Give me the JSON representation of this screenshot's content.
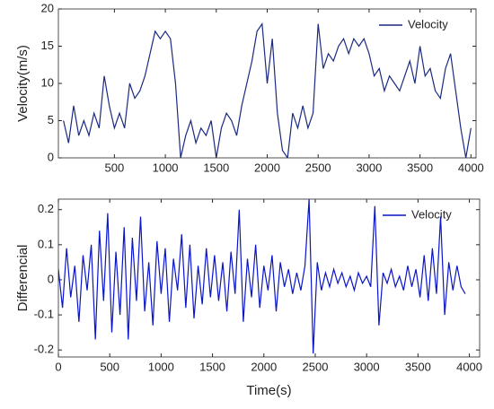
{
  "chart_data": [
    {
      "type": "line",
      "ylabel": "Velocity(m/s)",
      "xlim": [
        -50,
        4050
      ],
      "ylim": [
        0,
        20
      ],
      "xticks": [
        500,
        1000,
        1500,
        2000,
        2500,
        3000,
        3500,
        4000
      ],
      "yticks": [
        0,
        5,
        10,
        15,
        20
      ],
      "legend": "upper right",
      "x": [
        0,
        50,
        100,
        150,
        200,
        250,
        300,
        350,
        400,
        450,
        500,
        550,
        600,
        650,
        700,
        750,
        800,
        850,
        900,
        950,
        1000,
        1050,
        1100,
        1150,
        1200,
        1250,
        1300,
        1350,
        1400,
        1450,
        1500,
        1550,
        1600,
        1650,
        1700,
        1750,
        1800,
        1850,
        1900,
        1950,
        2000,
        2050,
        2100,
        2150,
        2200,
        2250,
        2300,
        2350,
        2400,
        2450,
        2500,
        2550,
        2600,
        2650,
        2700,
        2750,
        2800,
        2850,
        2900,
        2950,
        3000,
        3050,
        3100,
        3150,
        3200,
        3250,
        3300,
        3350,
        3400,
        3450,
        3500,
        3550,
        3600,
        3650,
        3700,
        3750,
        3800,
        3850,
        3900,
        3950,
        4000
      ],
      "series": [
        {
          "name": "Velocity",
          "color": "#1b2a80",
          "values": [
            5,
            2,
            7,
            3,
            5,
            3,
            6,
            4,
            11,
            7,
            4,
            6,
            4,
            10,
            8,
            9,
            11,
            14,
            17,
            16,
            17,
            16,
            10,
            0,
            3,
            5,
            2,
            4,
            3,
            5,
            0,
            4,
            6,
            5,
            3,
            7,
            10,
            13,
            17,
            18,
            10,
            16,
            6,
            1,
            0,
            6,
            4,
            7,
            4,
            6,
            18,
            12,
            14,
            13,
            15,
            16,
            14,
            16,
            15,
            16,
            14,
            11,
            12,
            9,
            11,
            10,
            9,
            11,
            13,
            10,
            15,
            11,
            12,
            9,
            8,
            12,
            14,
            9,
            4,
            0,
            4
          ]
        }
      ]
    },
    {
      "type": "line",
      "xlabel": "Time(s)",
      "ylabel": "Differencial",
      "xlim": [
        0,
        4100
      ],
      "ylim": [
        -0.22,
        0.23
      ],
      "xticks": [
        0,
        500,
        1000,
        1500,
        2000,
        2500,
        3000,
        3500,
        4000
      ],
      "yticks": [
        -0.2,
        -0.1,
        0,
        0.1,
        0.2
      ],
      "legend": "upper right",
      "x": [
        0,
        40,
        80,
        120,
        160,
        200,
        240,
        280,
        320,
        360,
        400,
        440,
        480,
        520,
        560,
        600,
        640,
        680,
        720,
        760,
        800,
        840,
        880,
        920,
        960,
        1000,
        1040,
        1080,
        1120,
        1160,
        1200,
        1240,
        1280,
        1320,
        1360,
        1400,
        1440,
        1480,
        1520,
        1560,
        1600,
        1640,
        1680,
        1720,
        1760,
        1800,
        1840,
        1880,
        1920,
        1960,
        2000,
        2040,
        2080,
        2120,
        2160,
        2200,
        2240,
        2280,
        2320,
        2360,
        2400,
        2440,
        2480,
        2520,
        2560,
        2600,
        2640,
        2680,
        2720,
        2760,
        2800,
        2840,
        2880,
        2920,
        2960,
        3000,
        3040,
        3080,
        3120,
        3160,
        3200,
        3240,
        3280,
        3320,
        3360,
        3400,
        3440,
        3480,
        3520,
        3560,
        3600,
        3640,
        3680,
        3720,
        3760,
        3800,
        3840,
        3880,
        3920,
        3960
      ],
      "series": [
        {
          "name": "Velocity",
          "color": "#0a14c8",
          "values": [
            0.03,
            -0.08,
            0.09,
            -0.05,
            0.04,
            -0.12,
            0.07,
            -0.03,
            0.1,
            -0.17,
            0.14,
            -0.06,
            0.19,
            -0.15,
            0.08,
            -0.1,
            0.15,
            -0.17,
            0.12,
            -0.06,
            0.18,
            -0.09,
            0.05,
            -0.13,
            0.11,
            -0.04,
            0.09,
            -0.12,
            0.06,
            -0.03,
            0.13,
            -0.08,
            0.1,
            -0.11,
            0.04,
            -0.07,
            0.09,
            -0.05,
            0.07,
            -0.06,
            0.05,
            -0.09,
            0.08,
            -0.04,
            0.2,
            -0.12,
            0.06,
            -0.05,
            0.1,
            -0.08,
            0.04,
            -0.03,
            0.07,
            -0.09,
            0.05,
            -0.02,
            0.03,
            -0.04,
            0.02,
            -0.03,
            0.04,
            0.23,
            -0.21,
            0.05,
            -0.03,
            0.02,
            -0.02,
            0.03,
            -0.01,
            0.02,
            -0.02,
            0.01,
            -0.03,
            0.02,
            -0.01,
            0.01,
            -0.02,
            0.21,
            -0.13,
            0.02,
            -0.01,
            0.03,
            -0.02,
            0.01,
            -0.03,
            0.04,
            -0.02,
            0.03,
            -0.05,
            0.07,
            -0.06,
            0.09,
            -0.04,
            0.18,
            -0.1,
            0.05,
            -0.03,
            0.04,
            -0.02,
            -0.04
          ]
        }
      ]
    }
  ]
}
